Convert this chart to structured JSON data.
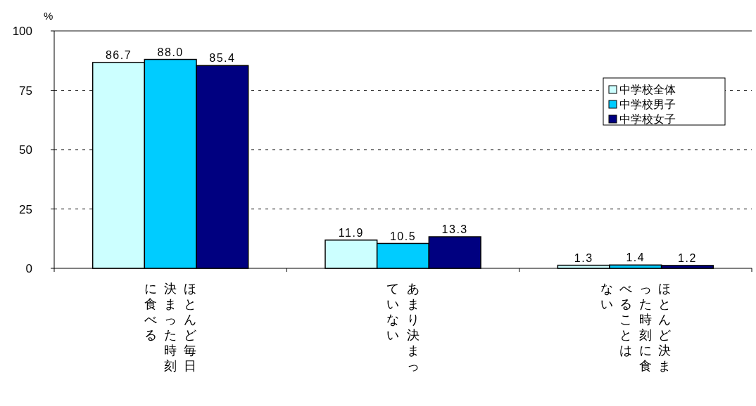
{
  "chart_data": {
    "type": "bar",
    "ylabel": "%",
    "categories": [
      "ほとんど毎日決まった時刻に食べる",
      "あまり決まっていない",
      "ほとんど決まった時刻に食べることはない"
    ],
    "series": [
      {
        "name": "中学校全体",
        "color": "#ccffff",
        "values": [
          86.7,
          11.9,
          1.3
        ]
      },
      {
        "name": "中学校男子",
        "color": "#00ccff",
        "values": [
          88.0,
          10.5,
          1.4
        ]
      },
      {
        "name": "中学校女子",
        "color": "#000080",
        "values": [
          85.4,
          13.3,
          1.2
        ]
      }
    ],
    "value_labels": [
      [
        "86.7",
        "11.9",
        "1.3"
      ],
      [
        "88.0",
        "10.5",
        "1.4"
      ],
      [
        "85.4",
        "13.3",
        "1.2"
      ]
    ],
    "ylim": [
      0,
      100
    ],
    "yticks": [
      0,
      25,
      50,
      75,
      100
    ],
    "grid": "y",
    "legend": "top right"
  }
}
